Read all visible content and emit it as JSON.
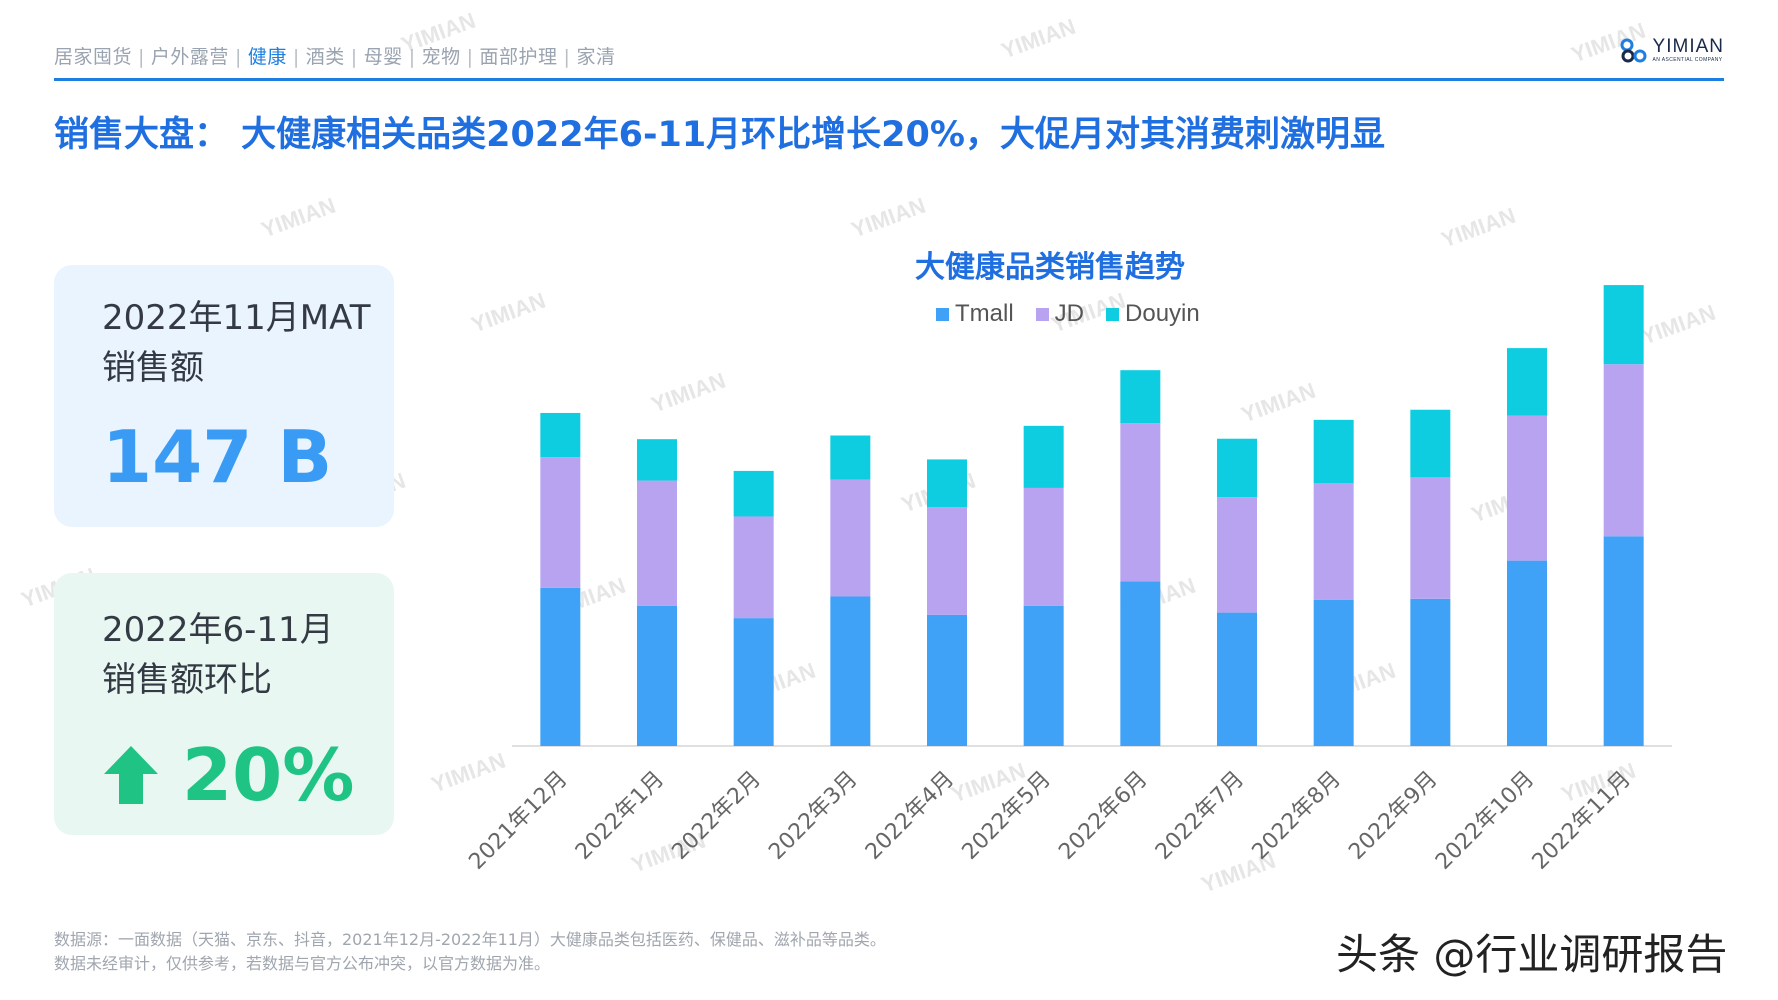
{
  "nav": {
    "items": [
      {
        "label": "居家囤货",
        "active": false
      },
      {
        "label": "户外露营",
        "active": false
      },
      {
        "label": "健康",
        "active": true
      },
      {
        "label": "酒类",
        "active": false
      },
      {
        "label": "母婴",
        "active": false
      },
      {
        "label": "宠物",
        "active": false
      },
      {
        "label": "面部护理",
        "active": false
      },
      {
        "label": "家清",
        "active": false
      }
    ],
    "separator": "|"
  },
  "logo": {
    "name": "YIMIAN",
    "sub": "AN ASCENTIAL COMPANY",
    "icon": "infinity-logo-icon"
  },
  "watermark_text": "YIMIAN",
  "headline": "销售大盘： 大健康相关品类2022年6-11月环比增长20%，大促月对其消费刺激明显",
  "cards": {
    "mat": {
      "label_line1": "2022年11月MAT",
      "label_line2": "销售额",
      "value": "147 B"
    },
    "growth": {
      "label_line1": "2022年6-11月",
      "label_line2": "销售额环比",
      "value": "20%",
      "icon": "up-arrow-icon"
    }
  },
  "colors": {
    "accent": "#1f7fe0",
    "tmall": "#3fa2f7",
    "jd": "#b7a3ef",
    "douyin": "#0fcde0",
    "growth": "#1fc383"
  },
  "chart_data": {
    "type": "bar",
    "stacked": true,
    "title": "大健康品类销售趋势",
    "categories": [
      "2021年12月",
      "2022年1月",
      "2022年2月",
      "2022年3月",
      "2022年4月",
      "2022年5月",
      "2022年6月",
      "2022年7月",
      "2022年8月",
      "2022年9月",
      "2022年10月",
      "2022年11月"
    ],
    "series": [
      {
        "name": "Tmall",
        "values": [
          34.4,
          30.5,
          27.8,
          32.5,
          28.5,
          30.5,
          35.8,
          29.0,
          31.8,
          32.0,
          40.3,
          45.6
        ],
        "color": "#3fa2f7"
      },
      {
        "name": "JD",
        "values": [
          28.4,
          27.2,
          22.1,
          25.4,
          23.4,
          25.6,
          34.4,
          25.1,
          25.3,
          26.4,
          31.5,
          37.4
        ],
        "color": "#b7a3ef"
      },
      {
        "name": "Douyin",
        "values": [
          9.6,
          9.0,
          9.9,
          9.6,
          10.4,
          13.5,
          11.5,
          12.7,
          13.8,
          14.7,
          14.7,
          17.2
        ],
        "color": "#0fcde0"
      }
    ],
    "xlabel": "",
    "ylabel": "",
    "ylim": [
      0,
      100
    ],
    "legend_position": "top-center",
    "grid": false
  },
  "footer": {
    "line1": "数据源：一面数据（天猫、京东、抖音，2021年12月-2022年11月）大健康品类包括医药、保健品、滋补品等品类。",
    "line2": "数据未经审计，仅供参考，若数据与官方公布冲突，以官方数据为准。"
  },
  "credit": "头条 @行业调研报告"
}
